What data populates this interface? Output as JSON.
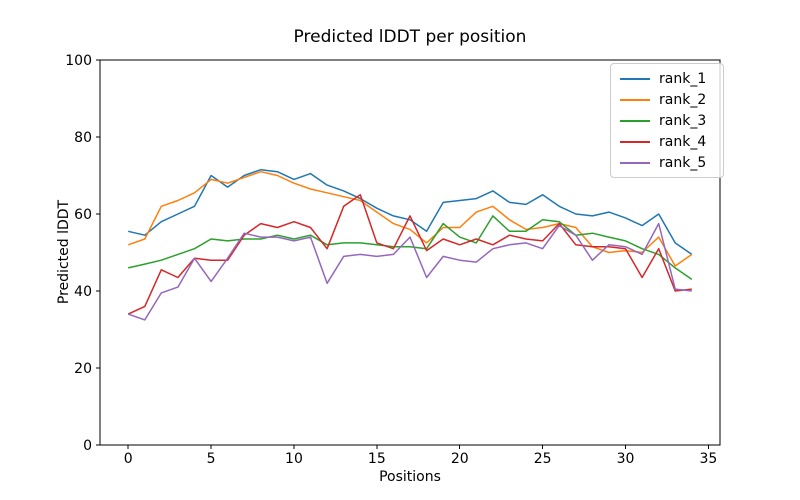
{
  "chart_data": {
    "type": "line",
    "title": "Predicted lDDT per position",
    "xlabel": "Positions",
    "ylabel": "Predicted lDDT",
    "xlim": [
      -1.7,
      35.7
    ],
    "ylim": [
      0,
      100
    ],
    "x_ticks": [
      0,
      5,
      10,
      15,
      20,
      25,
      30,
      35
    ],
    "y_ticks": [
      0,
      20,
      40,
      60,
      80,
      100
    ],
    "grid": false,
    "legend_position": "upper right",
    "x": [
      0,
      1,
      2,
      3,
      4,
      5,
      6,
      7,
      8,
      9,
      10,
      11,
      12,
      13,
      14,
      15,
      16,
      17,
      18,
      19,
      20,
      21,
      22,
      23,
      24,
      25,
      26,
      27,
      28,
      29,
      30,
      31,
      32,
      33,
      34
    ],
    "series": [
      {
        "name": "rank_1",
        "color": "#1f77b4",
        "values": [
          55.5,
          54.5,
          58,
          60,
          62,
          70,
          67,
          70,
          71.5,
          71,
          69,
          70.5,
          67.5,
          66,
          64,
          61.5,
          59.5,
          58.5,
          55.5,
          63,
          63.5,
          64,
          66,
          63,
          62.5,
          65,
          62,
          60,
          59.5,
          60.5,
          59,
          57,
          60,
          52.5,
          49.5
        ]
      },
      {
        "name": "rank_2",
        "color": "#ff7f0e",
        "values": [
          52,
          53.5,
          62,
          63.5,
          65.5,
          69,
          68,
          69.5,
          71,
          70,
          68,
          66.5,
          65.5,
          64.5,
          63.5,
          60.5,
          57.5,
          56,
          52.5,
          56.5,
          56.5,
          60.5,
          62,
          58.5,
          56,
          56.5,
          57.5,
          56.5,
          51.5,
          50,
          50.5,
          50,
          54,
          46.5,
          49.5
        ]
      },
      {
        "name": "rank_3",
        "color": "#2ca02c",
        "values": [
          46,
          47,
          48,
          49.5,
          51,
          53.5,
          53,
          53.5,
          53.5,
          54.5,
          53.5,
          54.5,
          52,
          52.5,
          52.5,
          52,
          51.5,
          51.5,
          51,
          57.5,
          54,
          52.5,
          59.5,
          55.5,
          55.5,
          58.5,
          58,
          54.5,
          55,
          54,
          53,
          51,
          49.5,
          46,
          43
        ]
      },
      {
        "name": "rank_4",
        "color": "#d62728",
        "values": [
          34,
          36,
          45.5,
          43.5,
          48.5,
          48,
          48,
          54.5,
          57.5,
          56.5,
          58,
          56.5,
          51,
          62,
          65,
          52.5,
          51,
          59.5,
          50.5,
          53.5,
          52,
          53.5,
          52,
          54.5,
          53.5,
          53,
          57.5,
          52,
          51.5,
          51.5,
          51,
          43.5,
          51,
          40,
          40.5
        ]
      },
      {
        "name": "rank_5",
        "color": "#9467bd",
        "values": [
          34,
          32.5,
          39.5,
          41,
          48.5,
          42.5,
          48.5,
          55,
          54,
          54,
          53,
          54,
          42,
          49,
          49.5,
          49,
          49.5,
          54,
          43.5,
          49,
          48,
          47.5,
          51,
          52,
          52.5,
          51,
          57,
          54.5,
          48,
          52,
          51.5,
          49.5,
          57.5,
          40.5,
          40
        ]
      }
    ]
  }
}
